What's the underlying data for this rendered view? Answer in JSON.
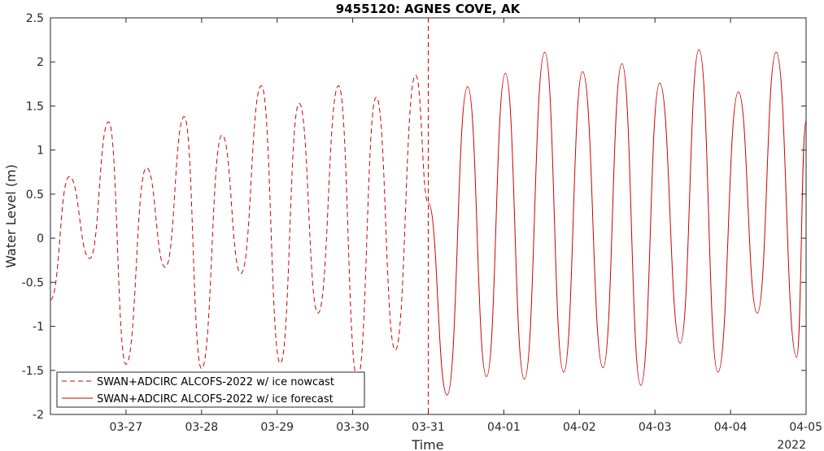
{
  "chart_data": {
    "type": "line",
    "title": "9455120: AGNES COVE, AK",
    "xlabel": "Time",
    "ylabel": "Water Level (m)",
    "year_label": "2022",
    "ylim": [
      -2,
      2.5
    ],
    "yticks": [
      -2,
      -1.5,
      -1,
      -0.5,
      0,
      0.5,
      1,
      1.5,
      2,
      2.5
    ],
    "ytick_labels": [
      "-2",
      "-1.5",
      "-1",
      "-0.5",
      "0",
      "0.5",
      "1",
      "1.5",
      "2",
      "2.5"
    ],
    "xlim": [
      "2022-03-26 00:00",
      "2022-04-05 00:00"
    ],
    "xticks": [
      "2022-03-27",
      "2022-03-28",
      "2022-03-29",
      "2022-03-30",
      "2022-03-31",
      "2022-04-01",
      "2022-04-02",
      "2022-04-03",
      "2022-04-04",
      "2022-04-05"
    ],
    "xtick_labels": [
      "03-27",
      "03-28",
      "03-29",
      "03-30",
      "03-31",
      "04-01",
      "04-02",
      "04-03",
      "04-04",
      "04-05"
    ],
    "split_time": "2022-03-31 00:00",
    "grid": false,
    "legend_position": "bottom-left",
    "line_color": "#cc0000",
    "series": [
      {
        "name": "SWAN+ADCIRC ALCOFS-2022 w/ ice nowcast",
        "style": "dashed",
        "x": [
          "2022-03-26 00:00",
          "2022-03-26 06:00",
          "2022-03-26 12:30",
          "2022-03-26 18:30",
          "2022-03-27 00:00",
          "2022-03-27 06:30",
          "2022-03-27 12:30",
          "2022-03-27 18:30",
          "2022-03-28 00:00",
          "2022-03-28 06:30",
          "2022-03-28 12:30",
          "2022-03-28 19:00",
          "2022-03-29 01:00",
          "2022-03-29 07:00",
          "2022-03-29 13:00",
          "2022-03-29 19:30",
          "2022-03-30 01:30",
          "2022-03-30 07:30",
          "2022-03-30 13:30",
          "2022-03-30 20:00",
          "2022-03-31 00:00"
        ],
        "values": [
          -0.7,
          0.7,
          -0.23,
          1.32,
          -1.43,
          0.8,
          -0.33,
          1.38,
          -1.48,
          1.17,
          -0.4,
          1.73,
          -1.42,
          1.53,
          -0.85,
          1.73,
          -1.6,
          1.6,
          -1.27,
          1.85,
          0.4
        ]
      },
      {
        "name": "SWAN+ADCIRC ALCOFS-2022 w/ ice forecast",
        "style": "solid",
        "x": [
          "2022-03-31 00:00",
          "2022-03-31 06:00",
          "2022-03-31 12:30",
          "2022-03-31 18:30",
          "2022-04-01 00:30",
          "2022-04-01 06:30",
          "2022-04-01 13:00",
          "2022-04-01 19:00",
          "2022-04-02 01:00",
          "2022-04-02 07:30",
          "2022-04-02 13:30",
          "2022-04-02 19:30",
          "2022-04-03 01:30",
          "2022-04-03 08:00",
          "2022-04-03 14:00",
          "2022-04-03 20:00",
          "2022-04-04 02:30",
          "2022-04-04 08:30",
          "2022-04-04 14:30",
          "2022-04-04 21:00",
          "2022-04-05 00:00"
        ],
        "values": [
          0.4,
          -1.78,
          1.72,
          -1.57,
          1.87,
          -1.6,
          2.11,
          -1.52,
          1.89,
          -1.47,
          1.98,
          -1.67,
          1.76,
          -1.19,
          2.14,
          -1.52,
          1.66,
          -0.85,
          2.11,
          -1.35,
          1.33
        ]
      }
    ]
  }
}
